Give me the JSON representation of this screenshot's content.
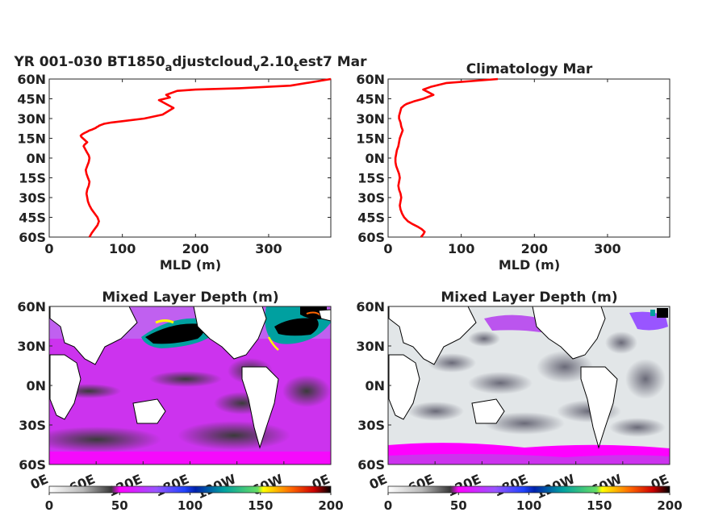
{
  "chart_data": [
    {
      "type": "line",
      "title": "YR 001-030 BT1850_adjustcloud_v2.10_test7 Mar",
      "title_parts": {
        "a": "YR 001-030 BT1850",
        "b": "a",
        "c": "djustcloud",
        "d": "v",
        "e": "2.10",
        "f": "t",
        "g": "est7 Mar"
      },
      "xlabel": "MLD (m)",
      "xlim": [
        0,
        385
      ],
      "xticks": [
        "0",
        "100",
        "200",
        "300"
      ],
      "xtick_values": [
        0,
        100,
        200,
        300
      ],
      "ylim": [
        -60,
        60
      ],
      "yticks": [
        "60N",
        "45N",
        "30N",
        "15N",
        "0N",
        "15S",
        "30S",
        "45S",
        "60S"
      ],
      "ytick_values": [
        60,
        45,
        30,
        15,
        0,
        -15,
        -30,
        -45,
        -60
      ],
      "series_color": "#ff0000",
      "x": [
        55,
        58,
        62,
        66,
        68,
        66,
        62,
        58,
        55,
        53,
        52,
        51,
        52,
        54,
        55,
        53,
        51,
        50,
        52,
        54,
        55,
        54,
        52,
        50,
        48,
        47,
        48,
        50,
        52,
        50,
        48,
        46,
        44,
        43,
        45,
        48,
        52,
        55,
        58,
        60,
        62,
        64,
        65,
        67,
        68,
        70,
        75,
        85,
        100,
        130,
        155,
        170,
        160,
        150,
        165,
        160,
        170,
        175,
        200,
        260,
        330,
        385
      ],
      "y": [
        -60,
        -57,
        -54,
        -51,
        -48,
        -45,
        -42,
        -39,
        -36,
        -33,
        -30,
        -27,
        -24,
        -21,
        -18,
        -15,
        -12,
        -9,
        -6,
        -3,
        0,
        2,
        4,
        6,
        8,
        9,
        10,
        11,
        12,
        13,
        14,
        15,
        16,
        17,
        18,
        19,
        20,
        21,
        21.5,
        22,
        22.5,
        23,
        23.5,
        24,
        24.5,
        25,
        26,
        27,
        28,
        30,
        33,
        38,
        41,
        44,
        46,
        48,
        50,
        51,
        52,
        53,
        55,
        60
      ]
    },
    {
      "type": "line",
      "title": "Climatology Mar",
      "xlabel": "MLD (m)",
      "xlim": [
        0,
        385
      ],
      "xticks": [
        "0",
        "100",
        "200",
        "300"
      ],
      "xtick_values": [
        0,
        100,
        200,
        300
      ],
      "ylim": [
        -60,
        60
      ],
      "yticks": [
        "60N",
        "45N",
        "30N",
        "15N",
        "0N",
        "15S",
        "30S",
        "45S",
        "60S"
      ],
      "ytick_values": [
        60,
        45,
        30,
        15,
        0,
        -15,
        -30,
        -45,
        -60
      ],
      "series_color": "#ff0000",
      "x": [
        45,
        48,
        50,
        46,
        40,
        33,
        27,
        22,
        19,
        17,
        16,
        17,
        18,
        17,
        15,
        14,
        15,
        16,
        15,
        13,
        11,
        10,
        10,
        11,
        12,
        14,
        15,
        16,
        18,
        20,
        18,
        17,
        15,
        15,
        16,
        17,
        18,
        20,
        22,
        25,
        30,
        35,
        48,
        62,
        55,
        48,
        58,
        80,
        150
      ],
      "y": [
        -60,
        -58,
        -56,
        -54,
        -52,
        -50,
        -48,
        -45,
        -42,
        -39,
        -36,
        -33,
        -30,
        -27,
        -24,
        -21,
        -18,
        -15,
        -12,
        -9,
        -6,
        -3,
        0,
        3,
        6,
        9,
        12,
        15,
        18,
        21,
        24,
        27,
        30,
        32,
        34,
        36,
        38,
        39,
        40,
        41,
        42,
        43,
        45,
        48,
        50,
        52,
        54,
        57,
        60
      ]
    },
    {
      "type": "heatmap",
      "title": "Mixed Layer Depth (m)",
      "yticks": [
        "60N",
        "30N",
        "0N",
        "30S",
        "60S"
      ],
      "xticks": [
        "0E",
        "60E",
        "120E",
        "180E",
        "120W",
        "60W",
        "0E"
      ],
      "colorbar_ticks": [
        "0",
        "50",
        "100",
        "150",
        "200"
      ],
      "colorbar_range": [
        0,
        200
      ]
    },
    {
      "type": "heatmap",
      "title": "Mixed Layer Depth (m)",
      "yticks": [
        "60N",
        "30N",
        "0N",
        "30S",
        "60S"
      ],
      "xticks": [
        "0E",
        "60E",
        "120E",
        "180E",
        "120W",
        "60W",
        "0E"
      ],
      "colorbar_ticks": [
        "0",
        "50",
        "100",
        "150",
        "200"
      ],
      "colorbar_range": [
        0,
        200
      ]
    }
  ],
  "colors": {
    "colormap": [
      "#ffffff",
      "#8c8c8c",
      "#3a3a3a",
      "#ff00ff",
      "#6666ff",
      "#0033cc",
      "#00a0a0",
      "#00cc88",
      "#ffff00",
      "#ff6600",
      "#cc0000",
      "#000000"
    ]
  }
}
